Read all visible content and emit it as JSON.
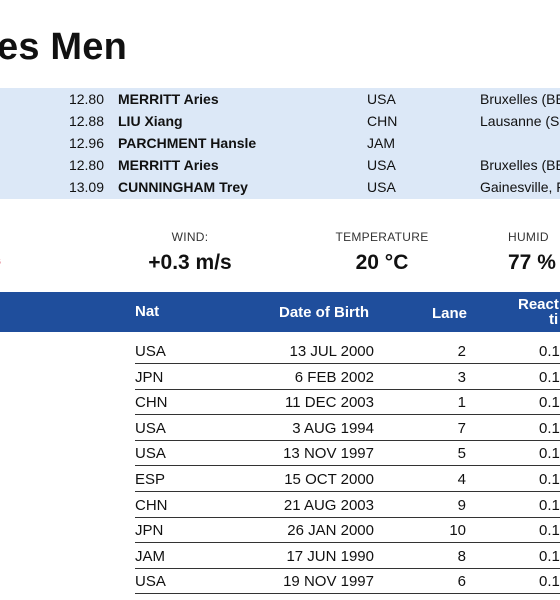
{
  "page_title": "es Men",
  "records": [
    {
      "mark": "12.80",
      "name": "MERRITT Aries",
      "nat": "USA",
      "venue": "Bruxelles (BE"
    },
    {
      "mark": "12.88",
      "name": "LIU Xiang",
      "nat": "CHN",
      "venue": "Lausanne (SU"
    },
    {
      "mark": "12.96",
      "name": "PARCHMENT Hansle",
      "nat": "JAM",
      "venue": ""
    },
    {
      "mark": "12.80",
      "name": "MERRITT Aries",
      "nat": "USA",
      "venue": "Bruxelles (BE"
    },
    {
      "mark": "13.09",
      "name": "CUNNINGHAM Trey",
      "nat": "USA",
      "venue": "Gainesville, F"
    }
  ],
  "conditions": {
    "wind_label": "WIND:",
    "wind_value": "+0.3 m/s",
    "temp_label": "TEMPERATURE",
    "temp_value": "20 °C",
    "humid_label": "HUMID",
    "humid_value": "77 %"
  },
  "red_mark": "‘",
  "table": {
    "headers": {
      "nat": "Nat",
      "dob": "Date of Birth",
      "lane": "Lane",
      "react_line1": "React",
      "react_line2": "ti"
    },
    "rows": [
      {
        "nat": "USA",
        "dob": "13 JUL 2000",
        "lane": "2",
        "react": "0.1"
      },
      {
        "nat": "JPN",
        "dob": "6 FEB 2002",
        "lane": "3",
        "react": "0.1"
      },
      {
        "nat": "CHN",
        "dob": "11 DEC 2003",
        "lane": "1",
        "react": "0.1"
      },
      {
        "nat": "USA",
        "dob": "3 AUG 1994",
        "lane": "7",
        "react": "0.1"
      },
      {
        "nat": "USA",
        "dob": "13 NOV 1997",
        "lane": "5",
        "react": "0.1"
      },
      {
        "nat": "ESP",
        "dob": "15 OCT 2000",
        "lane": "4",
        "react": "0.1"
      },
      {
        "nat": "CHN",
        "dob": "21 AUG 2003",
        "lane": "9",
        "react": "0.1"
      },
      {
        "nat": "JPN",
        "dob": "26 JAN 2000",
        "lane": "10",
        "react": "0.1"
      },
      {
        "nat": "JAM",
        "dob": "17 JUN 1990",
        "lane": "8",
        "react": "0.1"
      },
      {
        "nat": "USA",
        "dob": "19 NOV 1997",
        "lane": "6",
        "react": "0.1"
      }
    ]
  }
}
